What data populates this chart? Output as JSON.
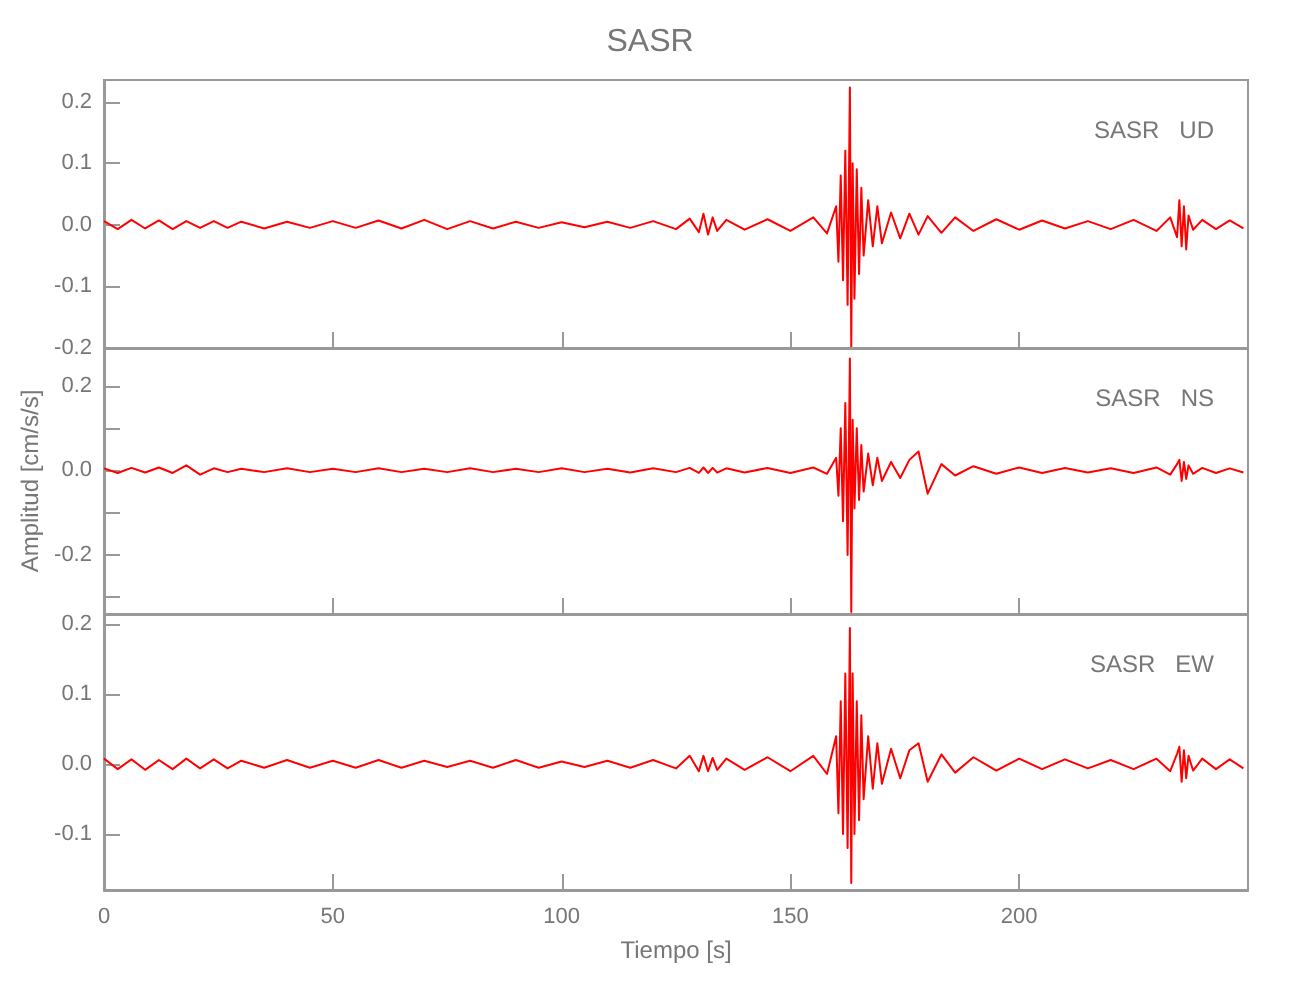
{
  "chart_data": [
    {
      "type": "line",
      "title": "SASR",
      "annotations": [
        "SASR   UD"
      ],
      "xlim": [
        0,
        250
      ],
      "xticks": [
        0,
        50,
        100,
        150,
        200
      ],
      "ylim": [
        -0.2,
        0.235
      ],
      "yticks": [
        -0.2,
        -0.1,
        {
          "value": 0,
          "label": "0.0"
        },
        0.1,
        0.2
      ],
      "tick_labels": "y",
      "grid": false,
      "series": [
        {
          "color": "#ff0000",
          "x": [
            0,
            3,
            6,
            9,
            12,
            15,
            18,
            21,
            24,
            27,
            30,
            35,
            40,
            45,
            50,
            55,
            60,
            65,
            70,
            75,
            80,
            85,
            90,
            95,
            100,
            105,
            110,
            115,
            120,
            125,
            128,
            130,
            131,
            132,
            133,
            134,
            136,
            140,
            145,
            150,
            155,
            158,
            160,
            160.5,
            161,
            161.5,
            162,
            162.5,
            163,
            163.3,
            163.6,
            164,
            164.5,
            165,
            165.5,
            166,
            167,
            168,
            169,
            170,
            172,
            174,
            176,
            178,
            180,
            183,
            186,
            190,
            195,
            200,
            205,
            210,
            215,
            220,
            225,
            230,
            233,
            234.5,
            235,
            235.5,
            236,
            236.5,
            237,
            238,
            240,
            243,
            246,
            249
          ],
          "values": [
            0.006,
            -0.007,
            0.008,
            -0.006,
            0.007,
            -0.007,
            0.006,
            -0.005,
            0.006,
            -0.005,
            0.005,
            -0.006,
            0.005,
            -0.005,
            0.006,
            -0.005,
            0.007,
            -0.006,
            0.008,
            -0.007,
            0.006,
            -0.006,
            0.005,
            -0.005,
            0.004,
            -0.004,
            0.005,
            -0.005,
            0.006,
            -0.007,
            0.01,
            -0.012,
            0.018,
            -0.016,
            0.012,
            -0.01,
            0.008,
            -0.008,
            0.009,
            -0.01,
            0.012,
            -0.014,
            0.03,
            -0.06,
            0.08,
            -0.09,
            0.12,
            -0.13,
            0.223,
            -0.198,
            0.1,
            -0.12,
            0.09,
            -0.08,
            0.06,
            -0.05,
            0.04,
            -0.035,
            0.03,
            -0.03,
            0.02,
            -0.022,
            0.018,
            -0.016,
            0.014,
            -0.013,
            0.012,
            -0.01,
            0.009,
            -0.008,
            0.007,
            -0.006,
            0.006,
            -0.007,
            0.008,
            -0.01,
            0.012,
            -0.02,
            0.04,
            -0.035,
            0.03,
            -0.04,
            0.015,
            -0.008,
            0.008,
            -0.007,
            0.007,
            -0.006
          ]
        }
      ]
    },
    {
      "type": "line",
      "ylabel": "Amplitud [cm/s/s]",
      "annotations": [
        "SASR   NS"
      ],
      "xlim": [
        0,
        250
      ],
      "xticks": [
        0,
        50,
        100,
        150,
        200
      ],
      "ylim": [
        -0.34,
        0.29
      ],
      "yticks": [
        {
          "value": -0.3,
          "label": null
        },
        -0.2,
        {
          "value": -0.1,
          "label": null
        },
        {
          "value": 0,
          "label": "0.0"
        },
        {
          "value": 0.1,
          "label": null
        },
        0.2
      ],
      "tick_labels": "y",
      "grid": false,
      "series": [
        {
          "color": "#ff0000",
          "x": [
            0,
            3,
            6,
            9,
            12,
            15,
            18,
            21,
            24,
            27,
            30,
            35,
            40,
            45,
            50,
            55,
            60,
            65,
            70,
            75,
            80,
            85,
            90,
            95,
            100,
            105,
            110,
            115,
            120,
            125,
            128,
            130,
            131,
            132,
            133,
            134,
            136,
            140,
            145,
            150,
            155,
            158,
            160,
            160.5,
            161,
            161.5,
            162,
            162.5,
            163,
            163.3,
            163.6,
            164,
            164.5,
            165,
            165.5,
            166,
            167,
            168,
            169,
            170,
            172,
            174,
            176,
            178,
            180,
            183,
            186,
            190,
            195,
            200,
            205,
            210,
            215,
            220,
            225,
            230,
            233,
            234.5,
            235,
            235.5,
            236,
            236.5,
            237,
            238,
            240,
            243,
            246,
            249
          ],
          "values": [
            0.005,
            -0.006,
            0.006,
            -0.005,
            0.007,
            -0.006,
            0.012,
            -0.01,
            0.005,
            -0.004,
            0.004,
            -0.004,
            0.005,
            -0.004,
            0.004,
            -0.004,
            0.005,
            -0.004,
            0.004,
            -0.004,
            0.005,
            -0.004,
            0.004,
            -0.004,
            0.005,
            -0.004,
            0.004,
            -0.005,
            0.005,
            -0.004,
            0.006,
            -0.006,
            0.007,
            -0.006,
            0.006,
            -0.005,
            0.005,
            -0.005,
            0.006,
            -0.006,
            0.007,
            -0.008,
            0.03,
            -0.06,
            0.1,
            -0.12,
            0.16,
            -0.2,
            0.265,
            -0.335,
            0.12,
            -0.09,
            0.1,
            -0.07,
            0.06,
            -0.05,
            0.04,
            -0.035,
            0.03,
            -0.025,
            0.02,
            -0.018,
            0.025,
            0.045,
            -0.055,
            0.015,
            -0.012,
            0.01,
            -0.008,
            0.007,
            -0.006,
            0.006,
            -0.005,
            0.005,
            -0.006,
            0.007,
            -0.01,
            0.015,
            0.025,
            -0.025,
            0.02,
            -0.02,
            0.012,
            -0.008,
            0.006,
            -0.006,
            0.005,
            -0.005
          ]
        }
      ]
    },
    {
      "type": "line",
      "xlabel": "Tiempo [s]",
      "annotations": [
        "SASR   EW"
      ],
      "xlim": [
        0,
        250
      ],
      "xticks": [
        0,
        50,
        100,
        150,
        200
      ],
      "ylim": [
        -0.18,
        0.215
      ],
      "yticks": [
        -0.1,
        {
          "value": 0,
          "label": "0.0"
        },
        0.1,
        0.2
      ],
      "grid": false,
      "series": [
        {
          "color": "#ff0000",
          "x": [
            0,
            3,
            6,
            9,
            12,
            15,
            18,
            21,
            24,
            27,
            30,
            35,
            40,
            45,
            50,
            55,
            60,
            65,
            70,
            75,
            80,
            85,
            90,
            95,
            100,
            105,
            110,
            115,
            120,
            125,
            128,
            130,
            131,
            132,
            133,
            134,
            136,
            140,
            145,
            150,
            155,
            158,
            160,
            160.5,
            161,
            161.5,
            162,
            162.5,
            163,
            163.3,
            163.6,
            164,
            164.5,
            165,
            165.5,
            166,
            167,
            168,
            169,
            170,
            172,
            174,
            176,
            178,
            180,
            183,
            186,
            190,
            195,
            200,
            205,
            210,
            215,
            220,
            225,
            230,
            233,
            234.5,
            235,
            235.5,
            236,
            236.5,
            237,
            238,
            240,
            243,
            246,
            249
          ],
          "values": [
            0.008,
            -0.007,
            0.007,
            -0.008,
            0.006,
            -0.007,
            0.008,
            -0.006,
            0.007,
            -0.006,
            0.005,
            -0.005,
            0.006,
            -0.005,
            0.005,
            -0.005,
            0.006,
            -0.005,
            0.005,
            -0.004,
            0.005,
            -0.005,
            0.006,
            -0.005,
            0.004,
            -0.004,
            0.005,
            -0.005,
            0.006,
            -0.006,
            0.012,
            -0.01,
            0.012,
            -0.01,
            0.009,
            -0.008,
            0.008,
            -0.008,
            0.01,
            -0.01,
            0.012,
            -0.014,
            0.04,
            -0.07,
            0.09,
            -0.1,
            0.13,
            -0.12,
            0.195,
            -0.17,
            0.13,
            -0.1,
            0.09,
            -0.08,
            0.07,
            -0.05,
            0.04,
            -0.035,
            0.03,
            -0.028,
            0.022,
            -0.02,
            0.02,
            0.03,
            -0.025,
            0.014,
            -0.012,
            0.01,
            -0.009,
            0.008,
            -0.007,
            0.007,
            -0.006,
            0.006,
            -0.007,
            0.008,
            -0.01,
            0.015,
            0.025,
            -0.025,
            0.02,
            -0.02,
            0.012,
            -0.009,
            0.008,
            -0.007,
            0.007,
            -0.006
          ]
        }
      ]
    }
  ]
}
